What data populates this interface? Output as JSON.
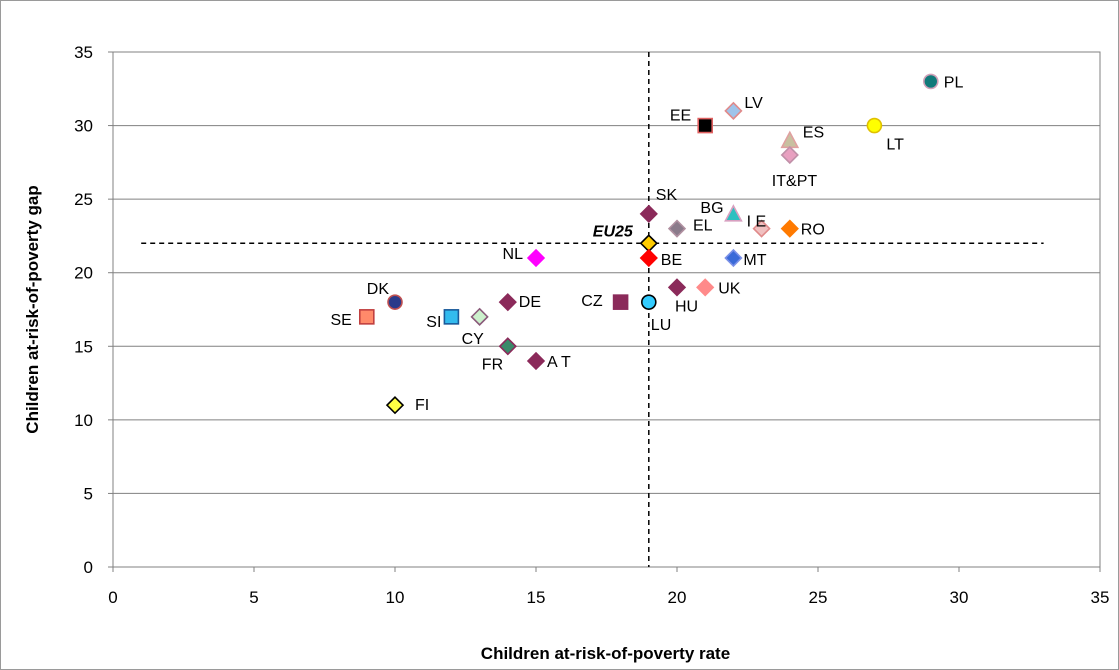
{
  "chart_data": {
    "type": "scatter",
    "xlabel": "Children at-risk-of-poverty rate",
    "ylabel": "Children at-risk-of-poverty gap",
    "xlim": [
      0,
      35
    ],
    "ylim": [
      0,
      35
    ],
    "xticks": [
      0,
      5,
      10,
      15,
      20,
      25,
      30,
      35
    ],
    "yticks": [
      0,
      5,
      10,
      15,
      20,
      25,
      30,
      35
    ],
    "grid": "horizontal",
    "reference_lines": {
      "eu25_rate": 19,
      "eu25_gap": 22
    },
    "points": [
      {
        "label": "PL",
        "x": 29,
        "y": 33,
        "shape": "circle",
        "fill": "#117a7a",
        "stroke": "#d0a0b8"
      },
      {
        "label": "EE",
        "x": 21,
        "y": 30,
        "shape": "square",
        "fill": "#000000",
        "stroke": "#e06060"
      },
      {
        "label": "LV",
        "x": 22,
        "y": 31,
        "shape": "diamond",
        "fill": "#9fc4ea",
        "stroke": "#e08a8a"
      },
      {
        "label": "LT",
        "x": 27,
        "y": 30,
        "shape": "circle",
        "fill": "#ffff00",
        "stroke": "#e0c000"
      },
      {
        "label": "ES",
        "x": 24,
        "y": 29,
        "shape": "triangle",
        "fill": "#c8c0a0",
        "stroke": "#e0a0a0"
      },
      {
        "label": "IT&PT",
        "x": 24,
        "y": 28,
        "shape": "diamond",
        "fill": "#e8a0c0",
        "stroke": "#c090a8"
      },
      {
        "label": "SK",
        "x": 19,
        "y": 24,
        "shape": "diamond",
        "fill": "#8b2a5a",
        "stroke": "#8b2a5a"
      },
      {
        "label": "BG",
        "x": 22,
        "y": 24,
        "shape": "triangle",
        "fill": "#2cc0c0",
        "stroke": "#d8a0c0"
      },
      {
        "label": "I E",
        "x": 23,
        "y": 23,
        "shape": "diamond",
        "fill": "#f0c0c0",
        "stroke": "#e08a8a"
      },
      {
        "label": "EL",
        "x": 20,
        "y": 23,
        "shape": "diamond",
        "fill": "#8a7a8a",
        "stroke": "#b090a0"
      },
      {
        "label": "RO",
        "x": 24,
        "y": 23,
        "shape": "diamond",
        "fill": "#ff7a00",
        "stroke": "#ff7a00"
      },
      {
        "label": "EU25",
        "x": 19,
        "y": 22,
        "shape": "diamond",
        "fill": "#ffcc00",
        "stroke": "#000000",
        "emphasis": true
      },
      {
        "label": "NL",
        "x": 15,
        "y": 21,
        "shape": "diamond",
        "fill": "#ff00ff",
        "stroke": "#ff00ff"
      },
      {
        "label": "BE",
        "x": 19,
        "y": 21,
        "shape": "diamond",
        "fill": "#ff0000",
        "stroke": "#ff0000"
      },
      {
        "label": "MT",
        "x": 22,
        "y": 21,
        "shape": "diamond",
        "fill": "#3a6ad8",
        "stroke": "#7a90e8"
      },
      {
        "label": "DK",
        "x": 10,
        "y": 18,
        "shape": "circle",
        "fill": "#2a3a8a",
        "stroke": "#c05050"
      },
      {
        "label": "DE",
        "x": 14,
        "y": 18,
        "shape": "diamond",
        "fill": "#8b2a5a",
        "stroke": "#8b2a5a"
      },
      {
        "label": "CZ",
        "x": 18,
        "y": 18,
        "shape": "square",
        "fill": "#8b2a5a",
        "stroke": "#8b2a5a"
      },
      {
        "label": "LU",
        "x": 19,
        "y": 18,
        "shape": "circle",
        "fill": "#33ccff",
        "stroke": "#000000"
      },
      {
        "label": "HU",
        "x": 20,
        "y": 19,
        "shape": "diamond",
        "fill": "#8b2a5a",
        "stroke": "#8b2a5a"
      },
      {
        "label": "UK",
        "x": 21,
        "y": 19,
        "shape": "diamond",
        "fill": "#ff8a8a",
        "stroke": "#ff8a8a"
      },
      {
        "label": "SE",
        "x": 9,
        "y": 17,
        "shape": "square",
        "fill": "#ff8a6a",
        "stroke": "#c04040"
      },
      {
        "label": "SI",
        "x": 12,
        "y": 17,
        "shape": "square",
        "fill": "#33bbee",
        "stroke": "#1a5a9a"
      },
      {
        "label": "CY",
        "x": 13,
        "y": 17,
        "shape": "diamond",
        "fill": "#ccf0cc",
        "stroke": "#8a5a7a"
      },
      {
        "label": "FR",
        "x": 14,
        "y": 15,
        "shape": "diamond",
        "fill": "#3a8a6a",
        "stroke": "#8b2a5a"
      },
      {
        "label": "A T",
        "x": 15,
        "y": 14,
        "shape": "diamond",
        "fill": "#8b2a5a",
        "stroke": "#8b2a5a"
      },
      {
        "label": "FI",
        "x": 10,
        "y": 11,
        "shape": "diamond",
        "fill": "#ffff44",
        "stroke": "#000000"
      }
    ]
  }
}
